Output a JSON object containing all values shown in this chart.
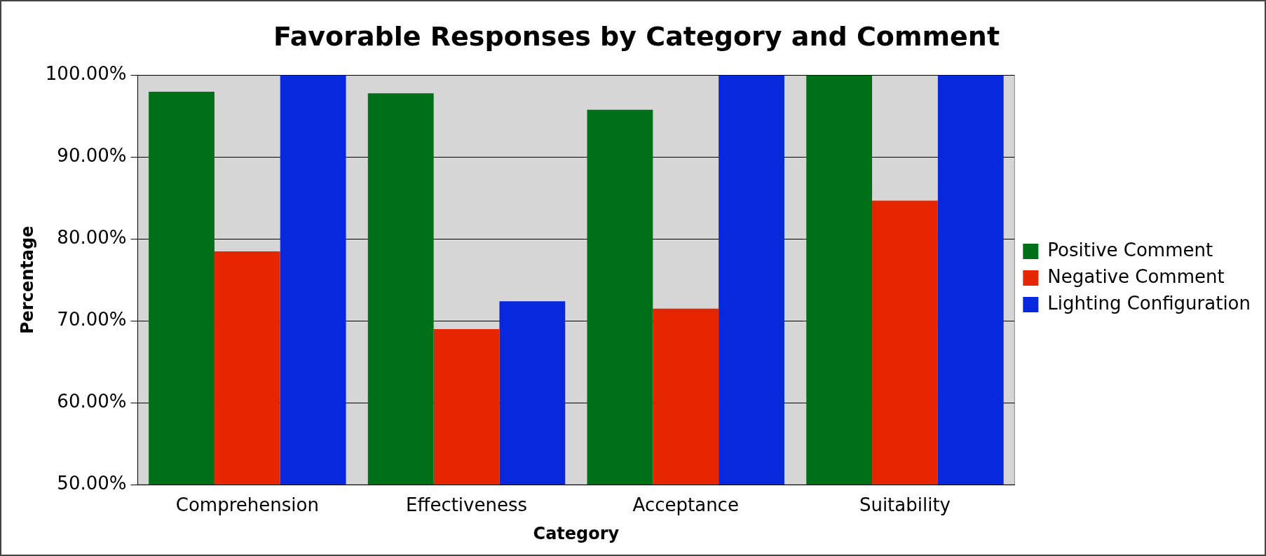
{
  "chart_data": {
    "type": "bar",
    "title": "Favorable Responses by Category and Comment",
    "xlabel": "Category",
    "ylabel": "Percentage",
    "categories": [
      "Comprehension",
      "Effectiveness",
      "Acceptance",
      "Suitability"
    ],
    "series": [
      {
        "name": "Positive Comment",
        "color": "#007018",
        "values": [
          98.0,
          97.8,
          95.8,
          100
        ]
      },
      {
        "name": "Negative Comment",
        "color": "#e52600",
        "values": [
          78.5,
          69.0,
          71.5,
          84.7
        ]
      },
      {
        "name": "Lighting Configuration",
        "color": "#0828de",
        "values": [
          100,
          72.4,
          100,
          100
        ]
      }
    ],
    "ylim": [
      50,
      100
    ],
    "yticks": [
      {
        "value": 50,
        "label": "50.00%"
      },
      {
        "value": 60,
        "label": "60.00%"
      },
      {
        "value": 70,
        "label": "70.00%"
      },
      {
        "value": 80,
        "label": "80.00%"
      },
      {
        "value": 90,
        "label": "90.00%"
      },
      {
        "value": 100,
        "label": "100.00%"
      }
    ],
    "grid": "y",
    "legend": "right"
  }
}
